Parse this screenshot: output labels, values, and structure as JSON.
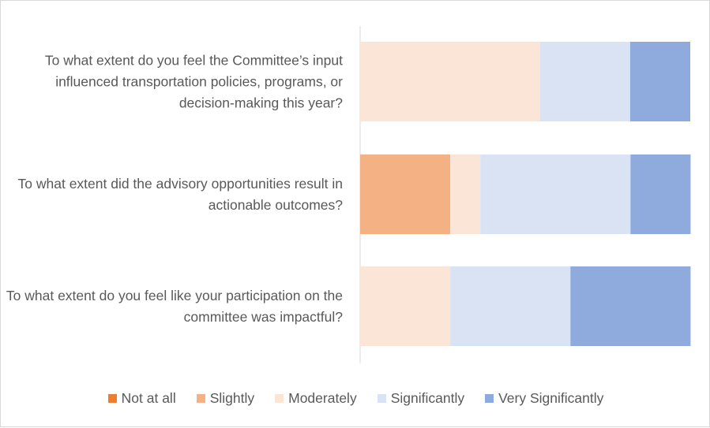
{
  "chart_data": {
    "type": "stacked-bar-horizontal",
    "categories": [
      "To what extent do you feel the Committee’s input influenced transportation policies, programs, or decision-making this year?",
      "To what extent did the advisory opportunities result in actionable outcomes?",
      "To what extent do you feel like your participation on the committee was impactful?"
    ],
    "series": [
      {
        "name": "Not at all",
        "color": "#ed7d31",
        "values": [
          0,
          0,
          0
        ]
      },
      {
        "name": "Slightly",
        "color": "#f4b183",
        "values": [
          0,
          27.3,
          0
        ]
      },
      {
        "name": "Moderately",
        "color": "#fbe5d6",
        "values": [
          54.5,
          9.1,
          27.3
        ]
      },
      {
        "name": "Significantly",
        "color": "#dae3f3",
        "values": [
          27.3,
          45.5,
          36.4
        ]
      },
      {
        "name": "Very Significantly",
        "color": "#8faadc",
        "values": [
          18.2,
          18.2,
          36.4
        ]
      }
    ],
    "xlim": [
      0,
      100
    ],
    "legend": "bottom"
  }
}
